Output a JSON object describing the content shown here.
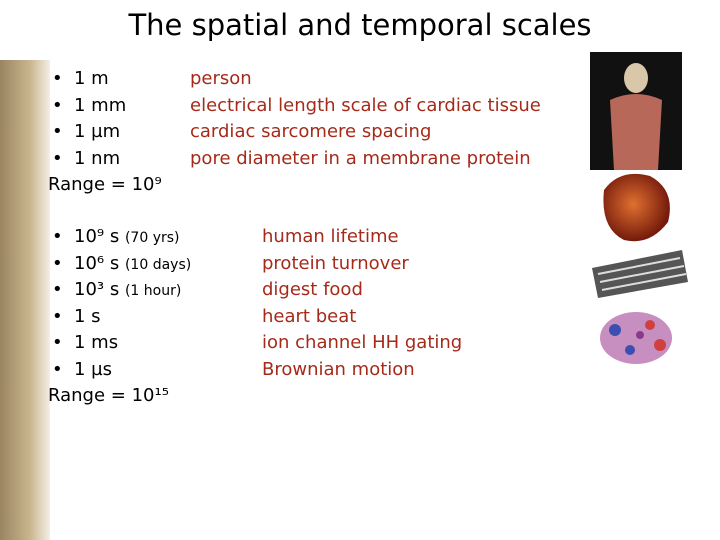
{
  "header": {
    "title": "The spatial and temporal scales"
  },
  "spatial": {
    "items": [
      {
        "value": "1 m",
        "description": "person"
      },
      {
        "value": "1 mm",
        "description": "electrical length scale of cardiac tissue"
      },
      {
        "value": "1 µm",
        "description": "cardiac sarcomere spacing"
      },
      {
        "value": "1 nm",
        "description": "pore diameter in a membrane protein"
      }
    ],
    "range": "Range = 10⁹"
  },
  "temporal": {
    "items": [
      {
        "value": "10⁹ s",
        "note": "(70 yrs)",
        "description": "human lifetime"
      },
      {
        "value": "10⁶ s",
        "note": "(10 days)",
        "description": "protein turnover"
      },
      {
        "value": "10³ s",
        "note": "(1 hour)",
        "description": "digest food"
      },
      {
        "value": "1 s",
        "description": "heart beat"
      },
      {
        "value": "1 ms",
        "description": "ion channel HH gating"
      },
      {
        "value": "1 µs",
        "description": "Brownian motion"
      }
    ],
    "range": "Range = 10¹⁵"
  }
}
